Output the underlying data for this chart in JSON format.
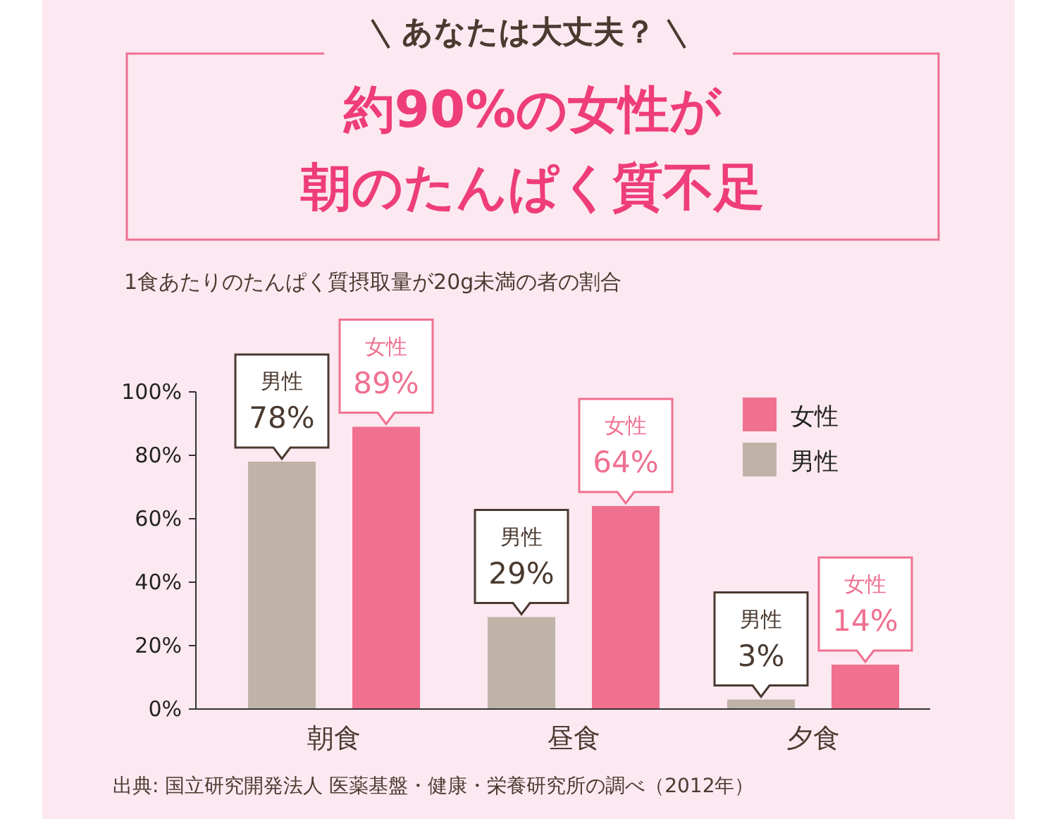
{
  "chart_data": {
    "type": "bar",
    "title": "約90%の女性が朝のたんぱく質不足",
    "subtitle": "1食あたりのたんぱく質摂取量が20g未満の者の割合",
    "annotations": [
      "あなたは大丈夫？",
      "出典: 国立研究開発法人 医薬基盤・健康・栄養研究所の調べ（2012年）"
    ],
    "categories": [
      "朝食",
      "昼食",
      "夕食"
    ],
    "series": [
      {
        "name": "男性",
        "color": "#bfb3a8",
        "values": [
          78,
          29,
          3
        ],
        "value_labels": [
          "78%",
          "29%",
          "3%"
        ]
      },
      {
        "name": "女性",
        "color": "#f07090",
        "values": [
          89,
          64,
          14
        ],
        "value_labels": [
          "89%",
          "64%",
          "14%"
        ]
      }
    ],
    "ylim": [
      0,
      100
    ],
    "yticks": [
      {
        "value": 0,
        "label": "0%"
      },
      {
        "value": 20,
        "label": "20%"
      },
      {
        "value": 40,
        "label": "40%"
      },
      {
        "value": 60,
        "label": "60%"
      },
      {
        "value": 80,
        "label": "80%"
      },
      {
        "value": 100,
        "label": "100%"
      }
    ],
    "legend": "top right",
    "grid": false
  }
}
